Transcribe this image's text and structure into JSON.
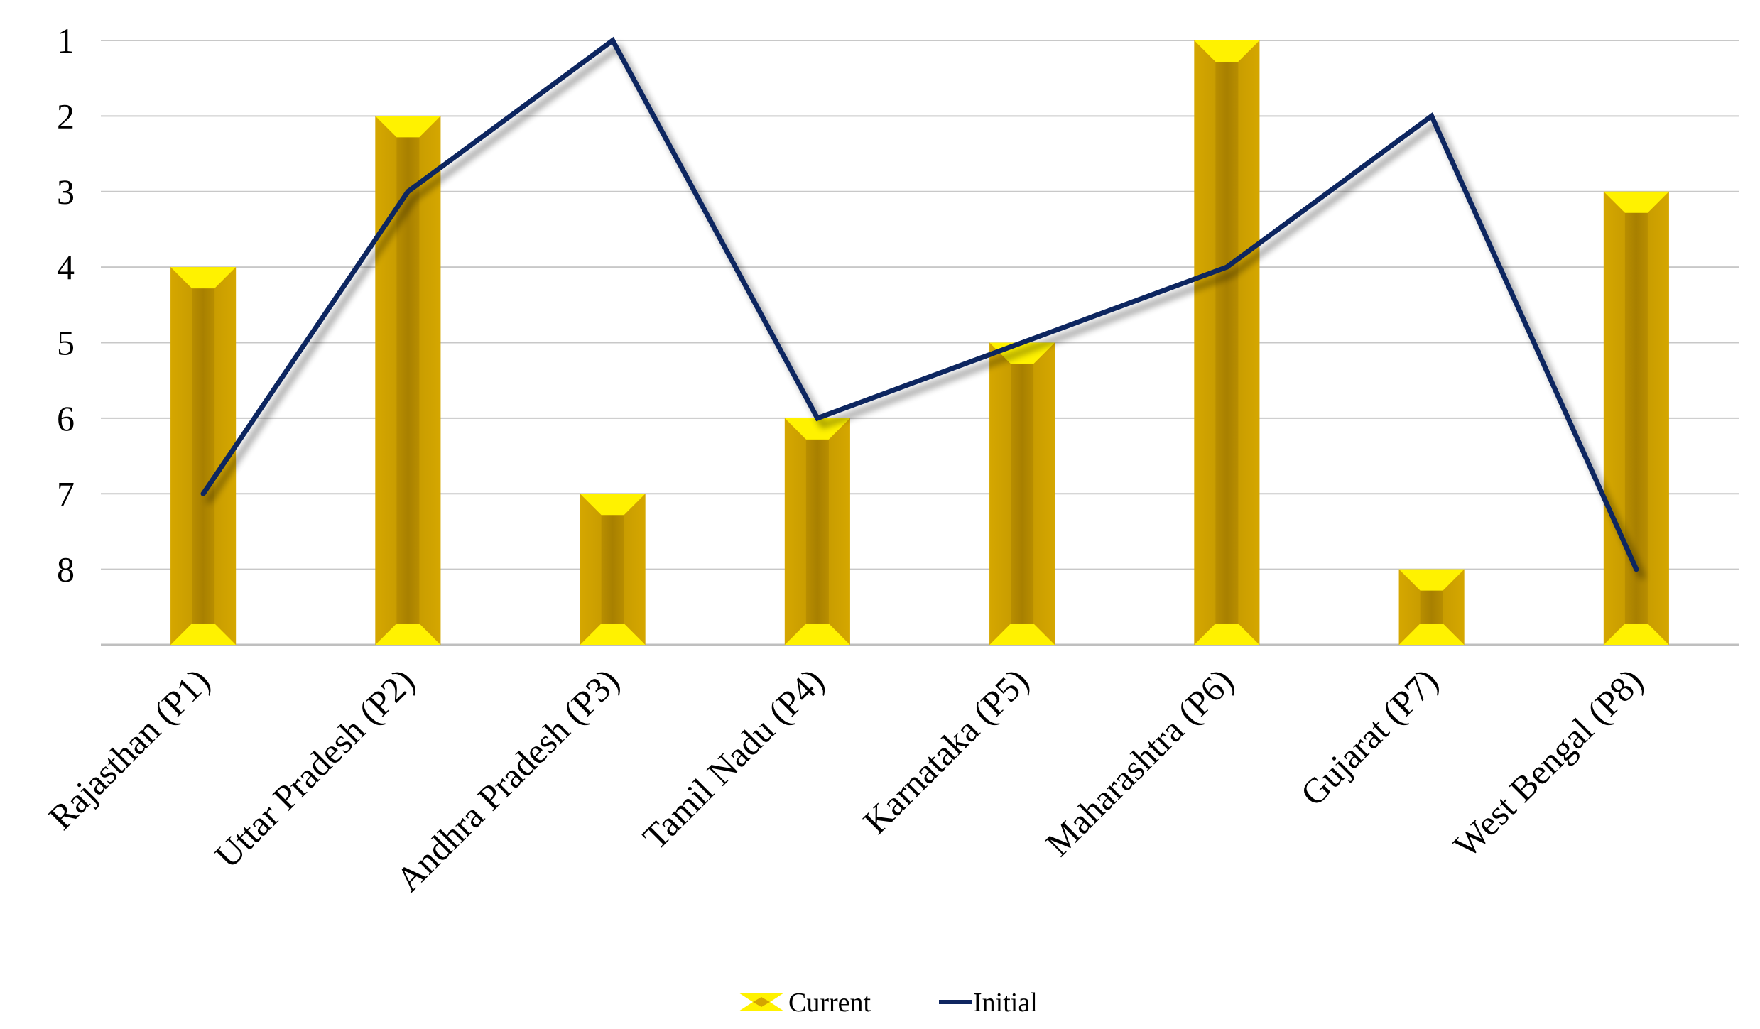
{
  "chart_data": {
    "type": "bar",
    "categories": [
      "Rajasthan (P1)",
      "Uttar Pradesh (P2)",
      "Andhra Pradesh (P3)",
      "Tamil Nadu (P4)",
      "Karnataka (P5)",
      "Maharashtra (P6)",
      "Gujarat (P7)",
      "West Bengal (P8)"
    ],
    "series": [
      {
        "name": "Current",
        "type": "bar",
        "values": [
          4,
          2,
          7,
          6,
          5,
          1,
          8,
          3
        ]
      },
      {
        "name": "Initial",
        "type": "line",
        "values": [
          7,
          3,
          1,
          6,
          5,
          4,
          2,
          8
        ]
      }
    ],
    "y_ticks": [
      "1",
      "2",
      "3",
      "4",
      "5",
      "6",
      "7",
      "8"
    ],
    "ylim": [
      1,
      9
    ],
    "y_reversed": true,
    "grid": true,
    "legend_position": "bottom-center",
    "title": "",
    "xlabel": "",
    "ylabel": "",
    "colors": {
      "bar_fill": "#D4A600",
      "bar_dark": "#A37B00",
      "bar_bevel": "#FFF200",
      "line": "#0F2660",
      "grid": "#C8C8C8"
    }
  }
}
